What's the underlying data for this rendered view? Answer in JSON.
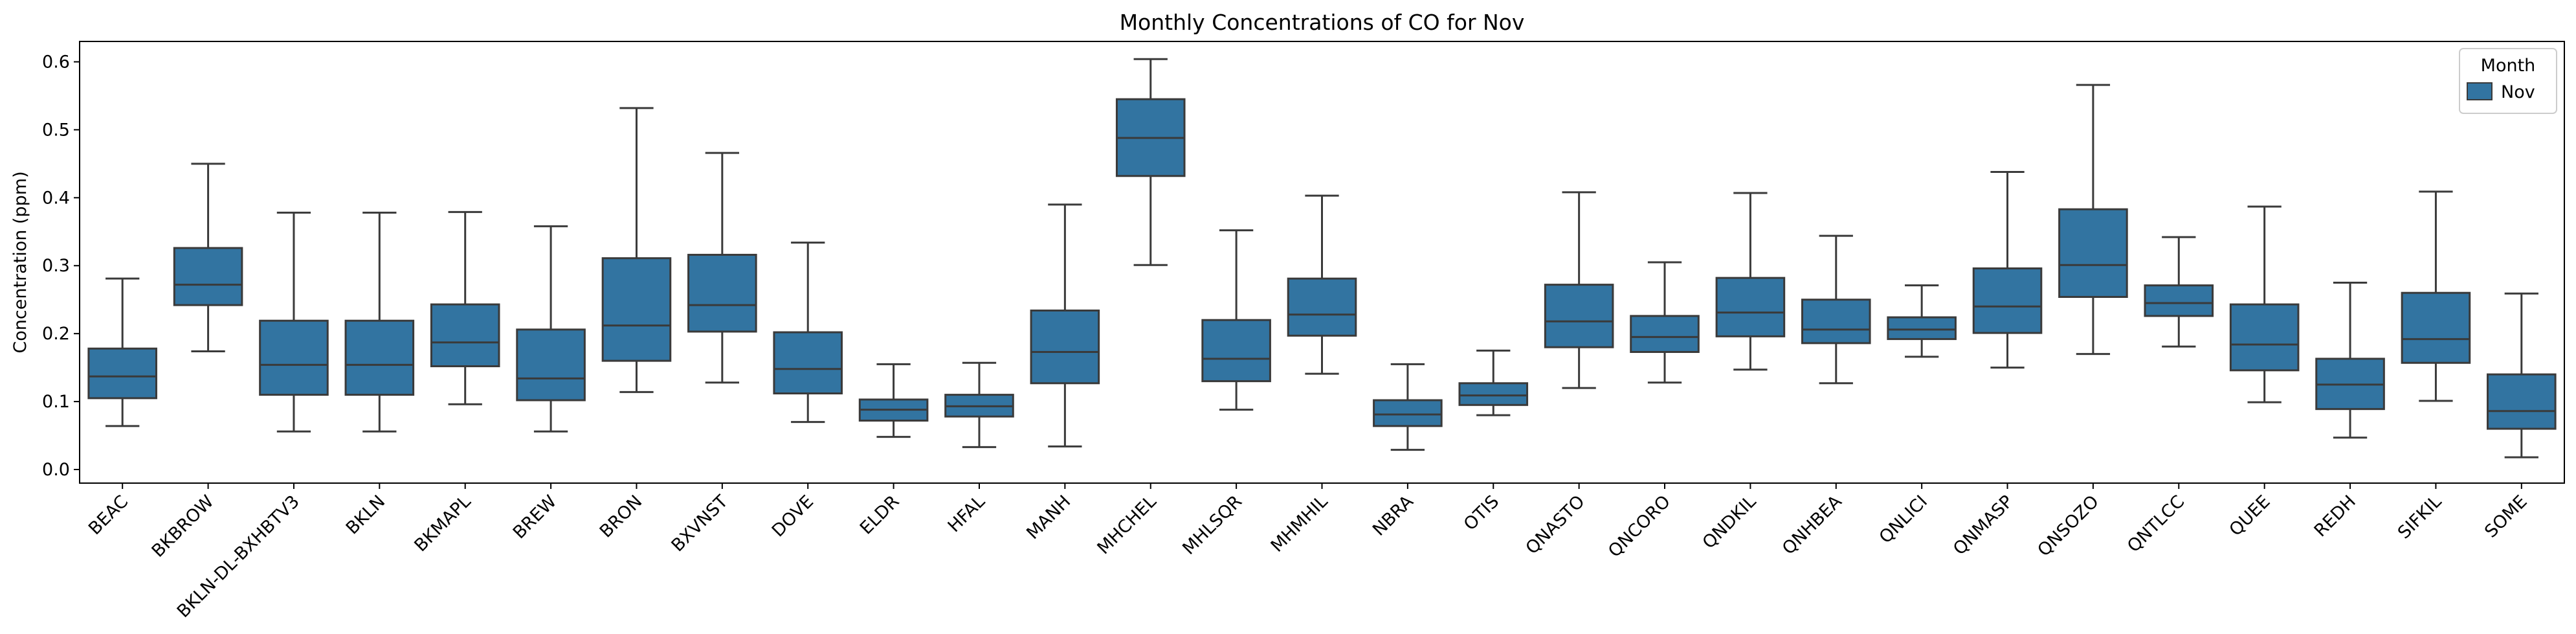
{
  "chart_data": {
    "type": "box",
    "title": "Monthly Concentrations of CO for Nov",
    "xlabel": "",
    "ylabel": "Concentration (ppm)",
    "ylim": [
      -0.02,
      0.63
    ],
    "yticks": [
      "0.0",
      "0.1",
      "0.2",
      "0.3",
      "0.4",
      "0.5",
      "0.6"
    ],
    "ytick_values": [
      0.0,
      0.1,
      0.2,
      0.3,
      0.4,
      0.5,
      0.6
    ],
    "grid": false,
    "legend": {
      "title": "Month",
      "placement": "top-right",
      "entries": [
        "Nov"
      ]
    },
    "box_color": "#3274a1",
    "edge_color": "#3a3a3a",
    "categories": [
      "BEAC",
      "BKBROW",
      "BKLN-DL-BXHBTV3",
      "BKLN",
      "BKMAPL",
      "BREW",
      "BRON",
      "BXVNST",
      "DOVE",
      "ELDR",
      "HFAL",
      "MANH",
      "MHCHEL",
      "MHLSQR",
      "MHMHIL",
      "NBRA",
      "OTIS",
      "QNASTO",
      "QNCORO",
      "QNDKIL",
      "QNHBEA",
      "QNLICI",
      "QNMASP",
      "QNSOZO",
      "QNTLCC",
      "QUEE",
      "REDH",
      "SIFKIL",
      "SOME"
    ],
    "series": [
      {
        "name": "Nov",
        "boxes": [
          {
            "whislo": 0.064,
            "q1": 0.105,
            "med": 0.137,
            "q3": 0.178,
            "whishi": 0.281
          },
          {
            "whislo": 0.174,
            "q1": 0.242,
            "med": 0.272,
            "q3": 0.326,
            "whishi": 0.45
          },
          {
            "whislo": 0.056,
            "q1": 0.11,
            "med": 0.154,
            "q3": 0.219,
            "whishi": 0.378
          },
          {
            "whislo": 0.056,
            "q1": 0.11,
            "med": 0.154,
            "q3": 0.219,
            "whishi": 0.378
          },
          {
            "whislo": 0.096,
            "q1": 0.152,
            "med": 0.187,
            "q3": 0.243,
            "whishi": 0.379
          },
          {
            "whislo": 0.056,
            "q1": 0.102,
            "med": 0.134,
            "q3": 0.206,
            "whishi": 0.358
          },
          {
            "whislo": 0.114,
            "q1": 0.16,
            "med": 0.212,
            "q3": 0.311,
            "whishi": 0.532
          },
          {
            "whislo": 0.128,
            "q1": 0.203,
            "med": 0.242,
            "q3": 0.316,
            "whishi": 0.466
          },
          {
            "whislo": 0.07,
            "q1": 0.112,
            "med": 0.148,
            "q3": 0.202,
            "whishi": 0.334
          },
          {
            "whislo": 0.048,
            "q1": 0.072,
            "med": 0.088,
            "q3": 0.103,
            "whishi": 0.155
          },
          {
            "whislo": 0.033,
            "q1": 0.078,
            "med": 0.093,
            "q3": 0.11,
            "whishi": 0.157
          },
          {
            "whislo": 0.034,
            "q1": 0.127,
            "med": 0.173,
            "q3": 0.234,
            "whishi": 0.39
          },
          {
            "whislo": 0.301,
            "q1": 0.432,
            "med": 0.488,
            "q3": 0.545,
            "whishi": 0.604
          },
          {
            "whislo": 0.088,
            "q1": 0.13,
            "med": 0.163,
            "q3": 0.22,
            "whishi": 0.352
          },
          {
            "whislo": 0.141,
            "q1": 0.197,
            "med": 0.228,
            "q3": 0.281,
            "whishi": 0.403
          },
          {
            "whislo": 0.029,
            "q1": 0.064,
            "med": 0.081,
            "q3": 0.102,
            "whishi": 0.155
          },
          {
            "whislo": 0.08,
            "q1": 0.095,
            "med": 0.109,
            "q3": 0.127,
            "whishi": 0.175
          },
          {
            "whislo": 0.12,
            "q1": 0.18,
            "med": 0.218,
            "q3": 0.272,
            "whishi": 0.408
          },
          {
            "whislo": 0.128,
            "q1": 0.173,
            "med": 0.195,
            "q3": 0.226,
            "whishi": 0.305
          },
          {
            "whislo": 0.147,
            "q1": 0.196,
            "med": 0.231,
            "q3": 0.282,
            "whishi": 0.407
          },
          {
            "whislo": 0.127,
            "q1": 0.186,
            "med": 0.206,
            "q3": 0.25,
            "whishi": 0.344
          },
          {
            "whislo": 0.166,
            "q1": 0.192,
            "med": 0.206,
            "q3": 0.224,
            "whishi": 0.271
          },
          {
            "whislo": 0.15,
            "q1": 0.201,
            "med": 0.24,
            "q3": 0.296,
            "whishi": 0.438
          },
          {
            "whislo": 0.17,
            "q1": 0.254,
            "med": 0.301,
            "q3": 0.383,
            "whishi": 0.566
          },
          {
            "whislo": 0.181,
            "q1": 0.226,
            "med": 0.245,
            "q3": 0.271,
            "whishi": 0.342
          },
          {
            "whislo": 0.099,
            "q1": 0.146,
            "med": 0.184,
            "q3": 0.243,
            "whishi": 0.387
          },
          {
            "whislo": 0.047,
            "q1": 0.089,
            "med": 0.125,
            "q3": 0.163,
            "whishi": 0.275
          },
          {
            "whislo": 0.101,
            "q1": 0.157,
            "med": 0.192,
            "q3": 0.26,
            "whishi": 0.409
          },
          {
            "whislo": 0.018,
            "q1": 0.06,
            "med": 0.086,
            "q3": 0.14,
            "whishi": 0.259
          }
        ]
      }
    ]
  }
}
